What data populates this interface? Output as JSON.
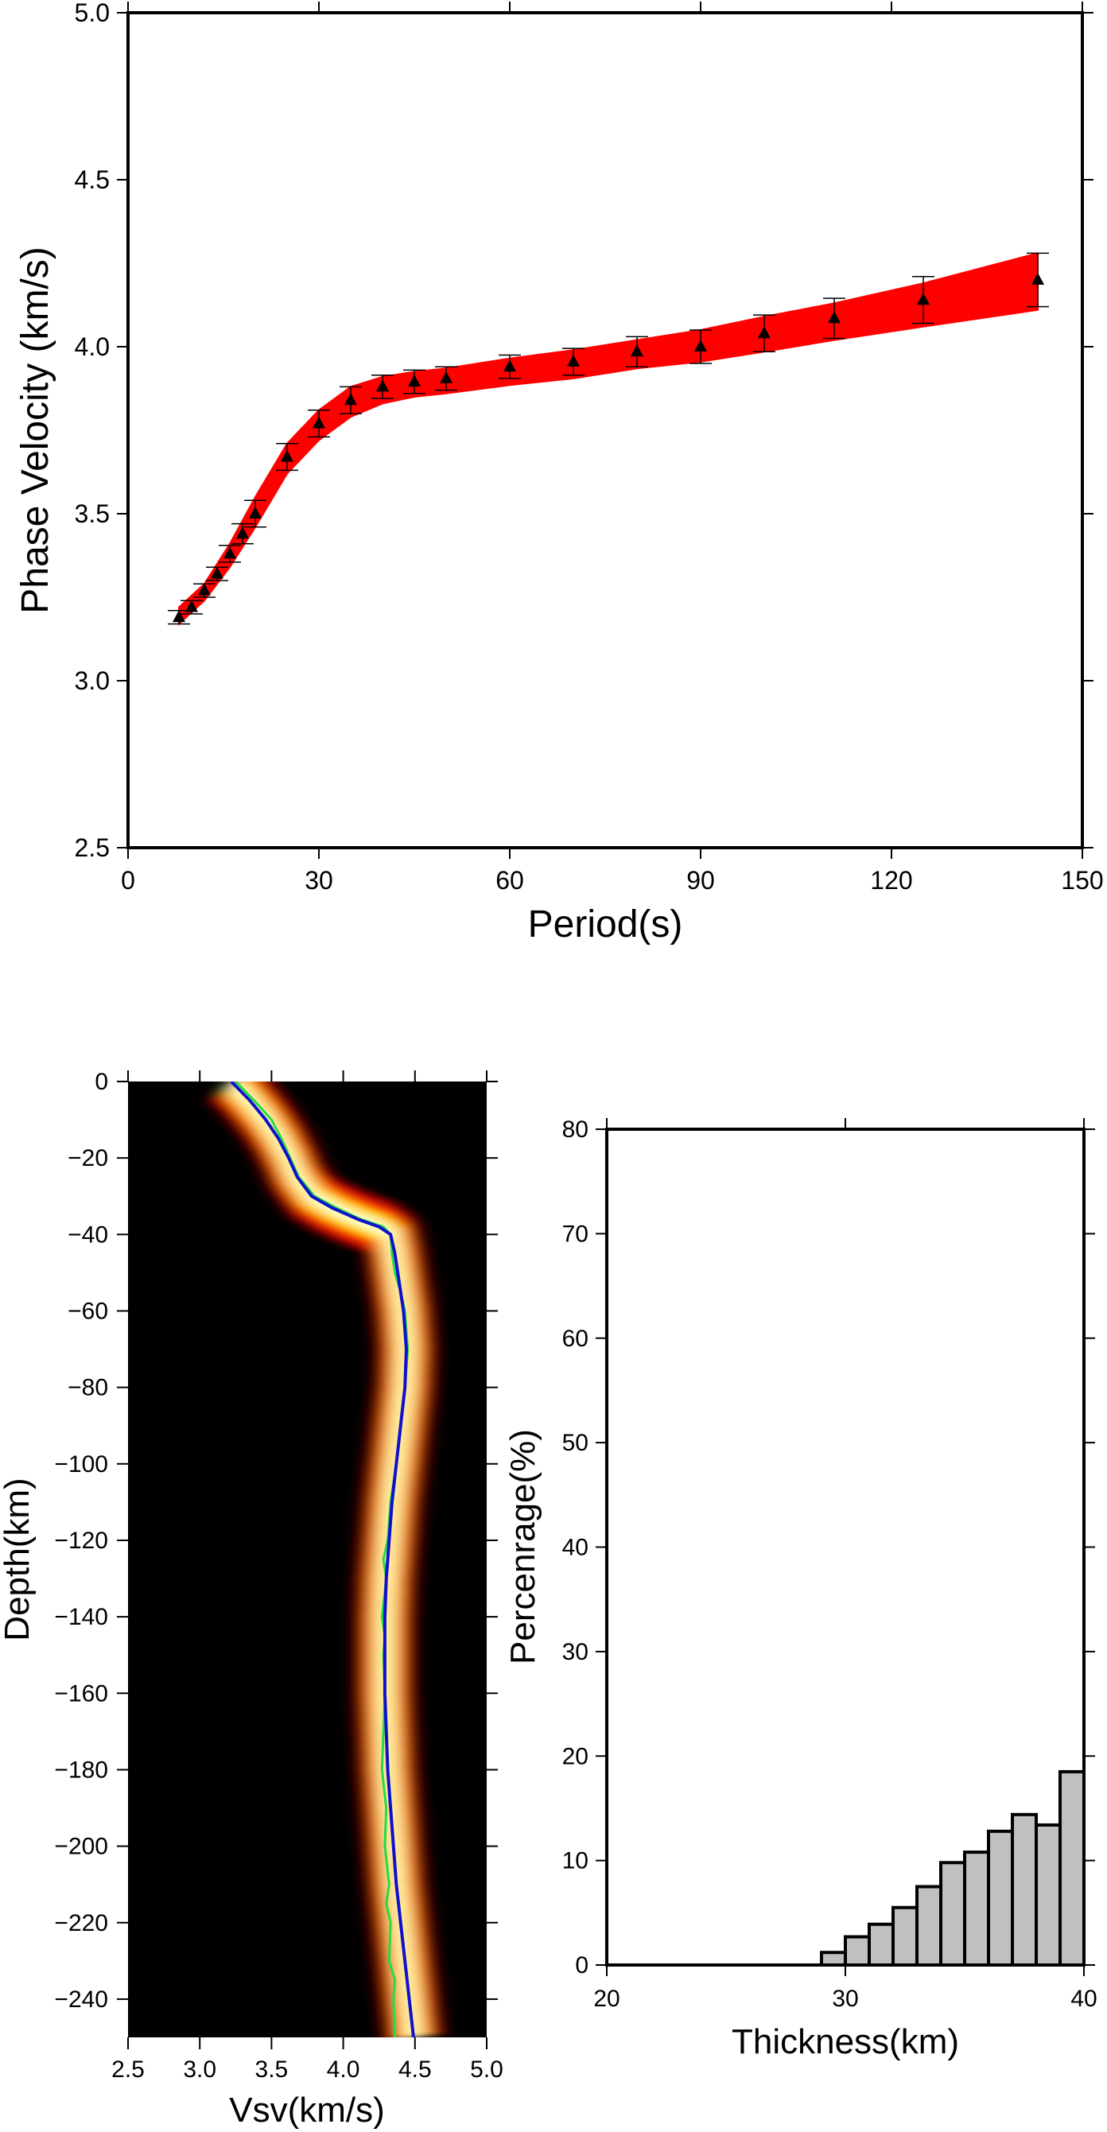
{
  "chart_data": [
    {
      "type": "scatter",
      "xlabel": "Period(s)",
      "ylabel": "Phase Velocity (km/s)",
      "xlim": [
        0,
        150
      ],
      "ylim": [
        2.5,
        5.0
      ],
      "xticks": [
        "0",
        "30",
        "60",
        "90",
        "120",
        "150"
      ],
      "yticks": [
        "2.5",
        "3.0",
        "3.5",
        "4.0",
        "4.5",
        "5.0"
      ],
      "band_color": "#ff0000",
      "band": {
        "x": [
          8,
          12,
          16,
          20,
          25,
          30,
          35,
          40,
          45,
          50,
          60,
          70,
          80,
          90,
          100,
          111,
          125,
          143
        ],
        "lower": [
          3.17,
          3.24,
          3.34,
          3.46,
          3.62,
          3.72,
          3.79,
          3.83,
          3.85,
          3.86,
          3.885,
          3.905,
          3.935,
          3.955,
          3.985,
          4.02,
          4.06,
          4.11
        ],
        "upper": [
          3.22,
          3.29,
          3.41,
          3.55,
          3.71,
          3.81,
          3.88,
          3.91,
          3.925,
          3.935,
          3.965,
          3.99,
          4.02,
          4.05,
          4.09,
          4.13,
          4.19,
          4.28
        ]
      },
      "observations": [
        {
          "x": 8,
          "y": 3.19,
          "err": 0.02
        },
        {
          "x": 10,
          "y": 3.22,
          "err": 0.02
        },
        {
          "x": 12,
          "y": 3.27,
          "err": 0.02
        },
        {
          "x": 14,
          "y": 3.32,
          "err": 0.02
        },
        {
          "x": 16,
          "y": 3.38,
          "err": 0.025
        },
        {
          "x": 18,
          "y": 3.44,
          "err": 0.03
        },
        {
          "x": 20,
          "y": 3.5,
          "err": 0.04
        },
        {
          "x": 25,
          "y": 3.67,
          "err": 0.04
        },
        {
          "x": 30,
          "y": 3.77,
          "err": 0.04
        },
        {
          "x": 35,
          "y": 3.84,
          "err": 0.04
        },
        {
          "x": 40,
          "y": 3.88,
          "err": 0.035
        },
        {
          "x": 45,
          "y": 3.895,
          "err": 0.035
        },
        {
          "x": 50,
          "y": 3.905,
          "err": 0.035
        },
        {
          "x": 60,
          "y": 3.94,
          "err": 0.035
        },
        {
          "x": 70,
          "y": 3.955,
          "err": 0.04
        },
        {
          "x": 80,
          "y": 3.985,
          "err": 0.045
        },
        {
          "x": 90,
          "y": 4.0,
          "err": 0.05
        },
        {
          "x": 100,
          "y": 4.04,
          "err": 0.055
        },
        {
          "x": 111,
          "y": 4.085,
          "err": 0.06
        },
        {
          "x": 125,
          "y": 4.14,
          "err": 0.07
        },
        {
          "x": 143,
          "y": 4.2,
          "err": 0.08
        }
      ]
    },
    {
      "type": "heatmap",
      "xlabel": "Vsv(km/s)",
      "ylabel": "Depth(km)",
      "xlim": [
        2.5,
        5.0
      ],
      "ylim": [
        -250,
        0
      ],
      "xticks": [
        "2.5",
        "3.0",
        "3.5",
        "4.0",
        "4.5",
        "5.0"
      ],
      "yticks": [
        "0",
        "−20",
        "−40",
        "−60",
        "−80",
        "−100",
        "−120",
        "−140",
        "−160",
        "−180",
        "−200",
        "−220",
        "−240"
      ],
      "background_color": "#000000",
      "colormap": [
        "#000000",
        "#b30000",
        "#ff3300",
        "#ffdd00",
        "#ffffcc"
      ],
      "series": [
        {
          "color": "#1010cc",
          "depth": [
            0,
            -5,
            -10,
            -15,
            -20,
            -25,
            -30,
            -33,
            -36,
            -38,
            -40,
            -45,
            -50,
            -60,
            -70,
            -80,
            -90,
            -100,
            -110,
            -120,
            -130,
            -140,
            -150,
            -160,
            -170,
            -180,
            -190,
            -200,
            -210,
            -220,
            -230,
            -240,
            -250
          ],
          "vsv": [
            3.22,
            3.35,
            3.46,
            3.55,
            3.62,
            3.68,
            3.78,
            3.92,
            4.1,
            4.25,
            4.33,
            4.36,
            4.38,
            4.42,
            4.44,
            4.43,
            4.4,
            4.37,
            4.34,
            4.32,
            4.3,
            4.29,
            4.29,
            4.29,
            4.3,
            4.31,
            4.33,
            4.35,
            4.37,
            4.4,
            4.43,
            4.46,
            4.49
          ]
        },
        {
          "color": "#22dd44",
          "depth": [
            0,
            -5,
            -10,
            -15,
            -20,
            -25,
            -30,
            -33,
            -36,
            -38,
            -40,
            -45,
            -50,
            -55,
            -60,
            -70,
            -80,
            -90,
            -100,
            -110,
            -120,
            -125,
            -130,
            -140,
            -145,
            -150,
            -160,
            -170,
            -180,
            -190,
            -200,
            -210,
            -215,
            -220,
            -230,
            -235,
            -240,
            -250
          ],
          "vsv": [
            3.25,
            3.38,
            3.5,
            3.57,
            3.63,
            3.69,
            3.8,
            3.95,
            4.12,
            4.28,
            4.33,
            4.34,
            4.36,
            4.4,
            4.43,
            4.45,
            4.43,
            4.4,
            4.37,
            4.33,
            4.31,
            4.28,
            4.3,
            4.27,
            4.29,
            4.28,
            4.29,
            4.28,
            4.27,
            4.3,
            4.29,
            4.32,
            4.3,
            4.33,
            4.32,
            4.36,
            4.35,
            4.36
          ]
        }
      ]
    },
    {
      "type": "bar",
      "xlabel": "Thickness(km)",
      "ylabel": "Percenrage(%)",
      "xlim": [
        20,
        40
      ],
      "ylim": [
        0,
        80
      ],
      "xticks": [
        "20",
        "30",
        "40"
      ],
      "yticks": [
        "0",
        "10",
        "20",
        "30",
        "40",
        "50",
        "60",
        "70",
        "80"
      ],
      "bar_color": "#c0c0c0",
      "bin_width": 1,
      "bins": [
        29.5,
        30.5,
        31.5,
        32.5,
        33.5,
        34.5,
        35.5,
        36.5,
        37.5,
        38.5,
        39.5
      ],
      "values": [
        1.2,
        2.7,
        3.9,
        5.5,
        7.5,
        9.8,
        10.8,
        12.8,
        14.4,
        13.4,
        18.5
      ]
    }
  ]
}
